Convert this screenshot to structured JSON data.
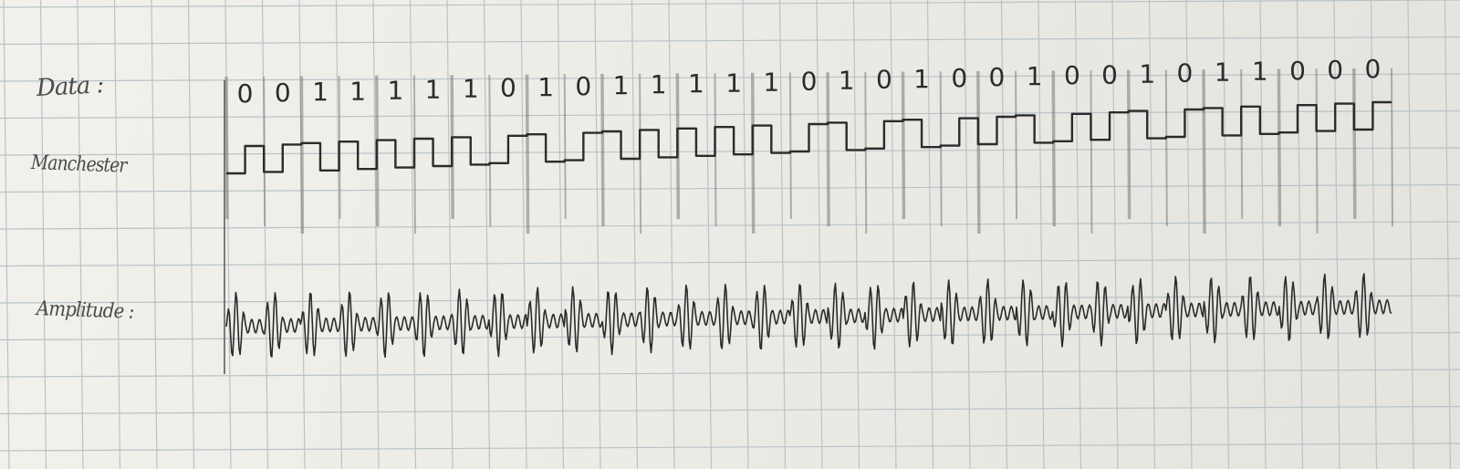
{
  "labels": {
    "data": "Data :",
    "manchester": "Manchester",
    "amplitude": "Amplitude :"
  },
  "bits": [
    "0",
    "0",
    "1",
    "1",
    "1",
    "1",
    "1",
    "0",
    "1",
    "0",
    "1",
    "1",
    "1",
    "1",
    "1",
    "0",
    "1",
    "0",
    "1",
    "0",
    "0",
    "1",
    "0",
    "0",
    "1",
    "0",
    "1",
    "1",
    "0",
    "0",
    "0"
  ],
  "encoding": "manchester: 0 = low-to-high transition, 1 = high-to-low transition",
  "colors": {
    "paper": "#eeede8",
    "grid": "#b8c3c8",
    "ink": "#2b2b2b",
    "highlight": "#7a7a7a"
  }
}
